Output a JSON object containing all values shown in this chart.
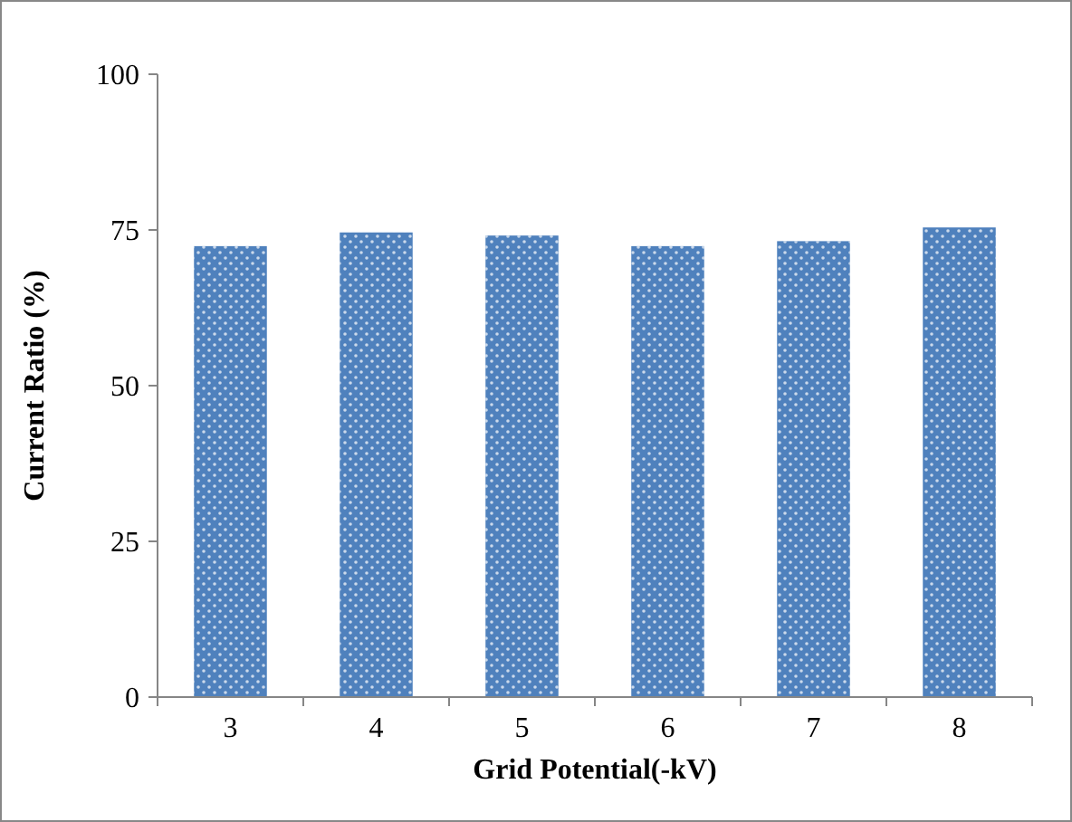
{
  "chart_data": {
    "type": "bar",
    "xlabel": "Grid Potential(-kV)",
    "ylabel": "Current Ratio (%)",
    "categories": [
      "3",
      "4",
      "5",
      "6",
      "7",
      "8"
    ],
    "values": [
      72.4,
      74.6,
      74.1,
      72.4,
      73.2,
      75.4
    ],
    "color": "#4f81bd",
    "ylim": [
      0,
      100
    ],
    "yticks": [
      0,
      25,
      50,
      75,
      100
    ],
    "grid": false
  }
}
